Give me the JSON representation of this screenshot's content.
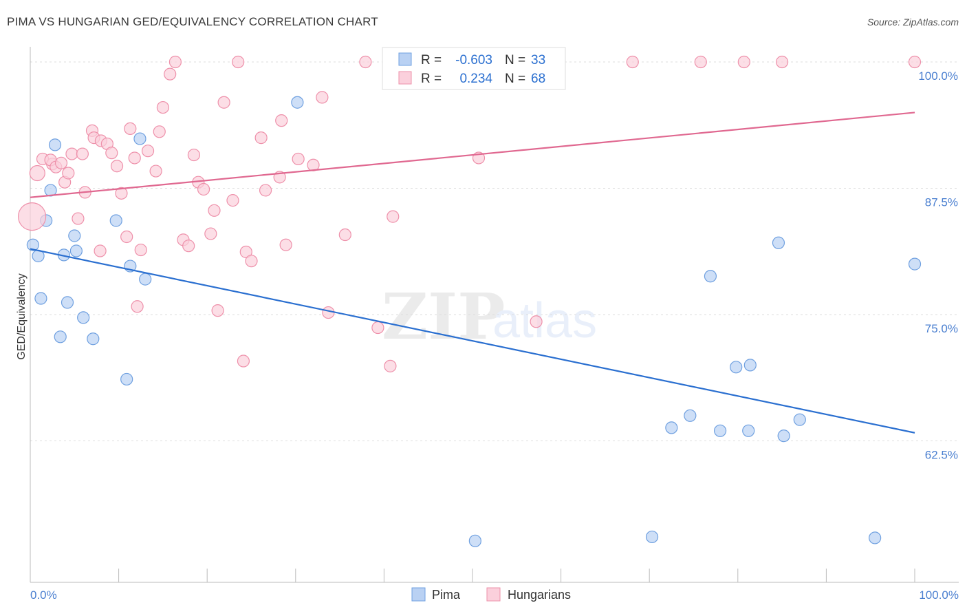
{
  "title": "PIMA VS HUNGARIAN GED/EQUIVALENCY CORRELATION CHART",
  "source": "Source: ZipAtlas.com",
  "watermark": {
    "zip": "ZIP",
    "atlas": "atlas"
  },
  "chart_data": {
    "type": "scatter",
    "xlabel": "",
    "ylabel": "GED/Equivalency",
    "xlim": [
      0,
      100
    ],
    "ylim": [
      48.5,
      101.5
    ],
    "x_tick_labels": [
      "0.0%",
      "100.0%"
    ],
    "y_ticks": [
      {
        "value": 100.0,
        "label": "100.0%"
      },
      {
        "value": 87.5,
        "label": "87.5%"
      },
      {
        "value": 75.0,
        "label": "75.0%"
      },
      {
        "value": 62.5,
        "label": "62.5%"
      }
    ],
    "grid": "horizontal dashed",
    "legend_top": [
      {
        "r_label": "R =",
        "r_value": "-0.603",
        "n_label": "N =",
        "n_value": "33"
      },
      {
        "r_label": "R =",
        "r_value": "0.234",
        "n_label": "N =",
        "n_value": "68"
      }
    ],
    "series": [
      {
        "name": "Pima",
        "color": "#6fa0e0",
        "fill": "#b9d1f3",
        "trend": {
          "x": [
            0,
            100
          ],
          "y": [
            81.5,
            63.3
          ],
          "color": "#2a6fd0"
        },
        "points": [
          [
            0.3,
            81.9
          ],
          [
            0.9,
            80.8
          ],
          [
            2.8,
            91.8
          ],
          [
            2.3,
            87.3
          ],
          [
            1.8,
            84.3
          ],
          [
            1.2,
            76.6
          ],
          [
            3.8,
            80.9
          ],
          [
            5.2,
            81.3
          ],
          [
            5.0,
            82.8
          ],
          [
            4.2,
            76.2
          ],
          [
            3.4,
            72.8
          ],
          [
            6.0,
            74.7
          ],
          [
            7.1,
            72.6
          ],
          [
            9.7,
            84.3
          ],
          [
            12.4,
            92.4
          ],
          [
            11.3,
            79.8
          ],
          [
            13.0,
            78.5
          ],
          [
            10.9,
            68.6
          ],
          [
            30.2,
            96.0
          ],
          [
            72.5,
            63.8
          ],
          [
            74.6,
            65.0
          ],
          [
            78.0,
            63.5
          ],
          [
            81.2,
            63.5
          ],
          [
            85.2,
            63.0
          ],
          [
            87.0,
            64.6
          ],
          [
            84.6,
            82.1
          ],
          [
            70.3,
            53.0
          ],
          [
            76.9,
            78.8
          ],
          [
            79.8,
            69.8
          ],
          [
            81.4,
            70.0
          ],
          [
            95.5,
            52.9
          ],
          [
            100.0,
            80.0
          ],
          [
            50.3,
            52.6
          ]
        ]
      },
      {
        "name": "Hungarians",
        "color": "#ee90aa",
        "fill": "#fbd0dc",
        "trend": {
          "x": [
            0,
            100
          ],
          "y": [
            86.6,
            95.0
          ],
          "color": "#e06890"
        },
        "points": [
          [
            0.2,
            84.7
          ],
          [
            0.8,
            89.0
          ],
          [
            1.4,
            90.4
          ],
          [
            2.5,
            89.9
          ],
          [
            2.3,
            90.3
          ],
          [
            2.9,
            89.6
          ],
          [
            3.5,
            90.0
          ],
          [
            3.9,
            88.1
          ],
          [
            4.3,
            89.0
          ],
          [
            4.7,
            90.9
          ],
          [
            5.9,
            90.9
          ],
          [
            6.2,
            87.1
          ],
          [
            5.4,
            84.5
          ],
          [
            7.0,
            93.2
          ],
          [
            7.2,
            92.5
          ],
          [
            8.0,
            92.2
          ],
          [
            8.7,
            91.9
          ],
          [
            9.2,
            91.0
          ],
          [
            9.8,
            89.7
          ],
          [
            10.3,
            87.0
          ],
          [
            10.9,
            82.7
          ],
          [
            11.3,
            93.4
          ],
          [
            11.8,
            90.5
          ],
          [
            12.5,
            81.4
          ],
          [
            13.3,
            91.2
          ],
          [
            14.2,
            89.2
          ],
          [
            14.6,
            93.1
          ],
          [
            15.0,
            95.5
          ],
          [
            15.8,
            98.8
          ],
          [
            16.4,
            100.0
          ],
          [
            17.3,
            82.4
          ],
          [
            17.9,
            81.8
          ],
          [
            18.5,
            90.8
          ],
          [
            19.0,
            88.1
          ],
          [
            19.6,
            87.4
          ],
          [
            20.4,
            83.0
          ],
          [
            20.8,
            85.3
          ],
          [
            21.9,
            96.0
          ],
          [
            22.9,
            86.3
          ],
          [
            23.5,
            100.0
          ],
          [
            24.4,
            81.2
          ],
          [
            25.0,
            80.3
          ],
          [
            26.1,
            92.5
          ],
          [
            26.6,
            87.3
          ],
          [
            28.2,
            88.6
          ],
          [
            28.4,
            94.2
          ],
          [
            28.9,
            81.9
          ],
          [
            30.3,
            90.4
          ],
          [
            32.0,
            89.8
          ],
          [
            33.0,
            96.5
          ],
          [
            33.7,
            75.2
          ],
          [
            35.6,
            82.9
          ],
          [
            37.9,
            100.0
          ],
          [
            39.3,
            73.7
          ],
          [
            40.7,
            69.9
          ],
          [
            41.0,
            84.7
          ],
          [
            50.7,
            90.5
          ],
          [
            54.3,
            100.0
          ],
          [
            57.2,
            74.3
          ],
          [
            68.1,
            100.0
          ],
          [
            75.8,
            100.0
          ],
          [
            80.7,
            100.0
          ],
          [
            85.0,
            100.0
          ],
          [
            100.0,
            100.0
          ],
          [
            24.1,
            70.4
          ],
          [
            12.1,
            75.8
          ],
          [
            7.9,
            81.3
          ],
          [
            21.2,
            75.4
          ]
        ]
      }
    ]
  }
}
